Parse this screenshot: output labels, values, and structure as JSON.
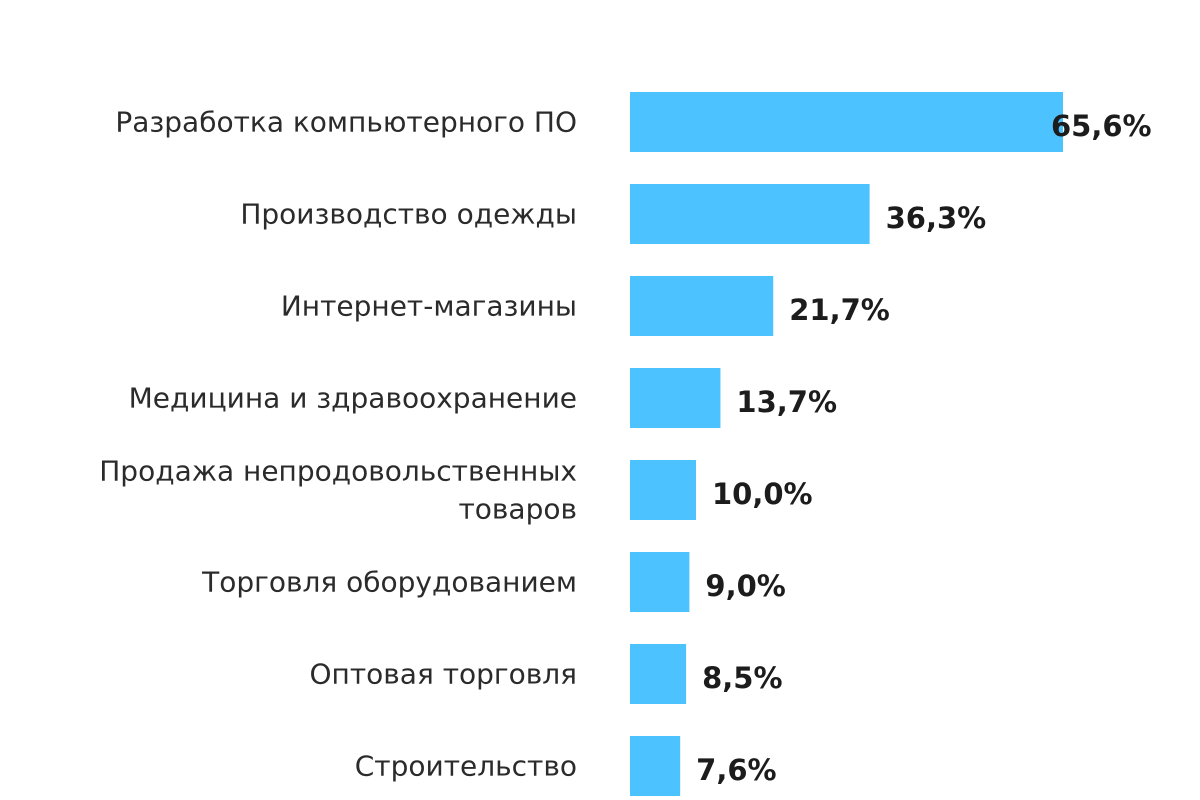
{
  "chart_data": {
    "type": "bar",
    "orientation": "horizontal",
    "categories": [
      "Разработка компьютерного ПО",
      "Производство одежды",
      "Интернет-магазины",
      "Медицина и здравоохранение",
      "Продажа непродовольственных товаров",
      "Торговля оборудованием",
      "Оптовая торговля",
      "Строительство"
    ],
    "category_lines": [
      [
        "Разработка компьютерного ПО"
      ],
      [
        "Производство одежды"
      ],
      [
        "Интернет-магазины"
      ],
      [
        "Медицина и здравоохранение"
      ],
      [
        "Продажа непродовольственных",
        "товаров"
      ],
      [
        "Торговля оборудованием"
      ],
      [
        "Оптовая торговля"
      ],
      [
        "Строительство"
      ]
    ],
    "values": [
      65.6,
      36.3,
      21.7,
      13.7,
      10.0,
      9.0,
      8.5,
      7.6
    ],
    "value_labels": [
      "65,6%",
      "36,3%",
      "21,7%",
      "13,7%",
      "10,0%",
      "9,0%",
      "8,5%",
      "7,6%"
    ],
    "bar_color": "#4cc2ff",
    "title": "",
    "xlabel": "",
    "ylabel": "",
    "grid": false,
    "legend": "none"
  }
}
